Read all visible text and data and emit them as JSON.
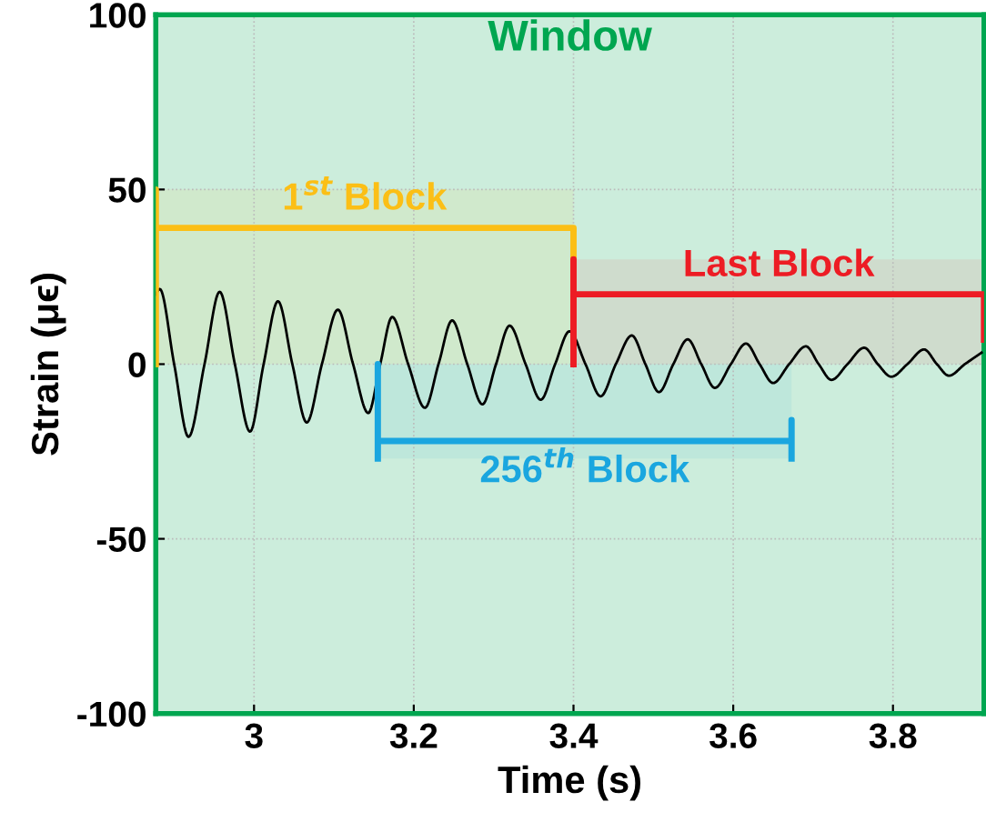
{
  "chart_data": {
    "type": "line",
    "xlabel": "Time (s)",
    "ylabel": "Strain (μϵ)",
    "xlim": [
      2.877,
      3.914
    ],
    "xticks": [
      3,
      3.2,
      3.4,
      3.6,
      3.8
    ],
    "ylim": [
      -100,
      100
    ],
    "yticks": [
      -100,
      -50,
      0,
      50,
      100
    ],
    "grid": true,
    "series": [
      {
        "color": "#000000",
        "x": [
          2.877,
          2.882,
          2.9,
          2.918,
          2.938,
          2.957,
          2.976,
          2.995,
          3.012,
          3.03,
          3.048,
          3.066,
          3.085,
          3.105,
          3.124,
          3.143,
          3.158,
          3.173,
          3.193,
          3.214,
          3.231,
          3.248,
          3.267,
          3.286,
          3.303,
          3.32,
          3.34,
          3.359,
          3.377,
          3.395,
          3.415,
          3.434,
          3.453,
          3.473,
          3.49,
          3.507,
          3.525,
          3.543,
          3.56,
          3.577,
          3.597,
          3.616,
          3.633,
          3.65,
          3.67,
          3.691,
          3.707,
          3.723,
          3.743,
          3.764,
          3.781,
          3.798,
          3.818,
          3.839,
          3.855,
          3.87,
          3.89,
          3.911
        ],
        "values": [
          20,
          21.5,
          0,
          -20.8,
          0,
          20.7,
          0,
          -19.3,
          0,
          18,
          0,
          -16.7,
          0,
          15.6,
          0,
          -14,
          0,
          13.5,
          0,
          -12.5,
          0,
          12.5,
          0,
          -11.5,
          0,
          11,
          0,
          -10.2,
          0,
          9.4,
          0,
          -9.2,
          0,
          8.2,
          0,
          -8,
          0,
          7.1,
          0,
          -6.8,
          0,
          5.9,
          0,
          -5.4,
          0,
          5.1,
          0,
          -4.5,
          0,
          4.7,
          0,
          -3.6,
          0,
          4.2,
          0,
          -3.3,
          0,
          3.3
        ]
      }
    ],
    "bands": [
      {
        "axis": "x",
        "from": 2.877,
        "to": 3.914,
        "label": "Window",
        "color": "#00a650"
      },
      {
        "axis": "x",
        "from": 2.877,
        "to": 3.4,
        "label": "1$^{st}$ Block",
        "color": "#fbbf16"
      },
      {
        "axis": "x",
        "from": 3.4,
        "to": 3.914,
        "label": "Last Block",
        "color": "#ed1c24"
      },
      {
        "axis": "x",
        "from": 3.155,
        "to": 3.673,
        "label": "256$^{th}$ Block",
        "color": "#1aa6df"
      }
    ]
  }
}
